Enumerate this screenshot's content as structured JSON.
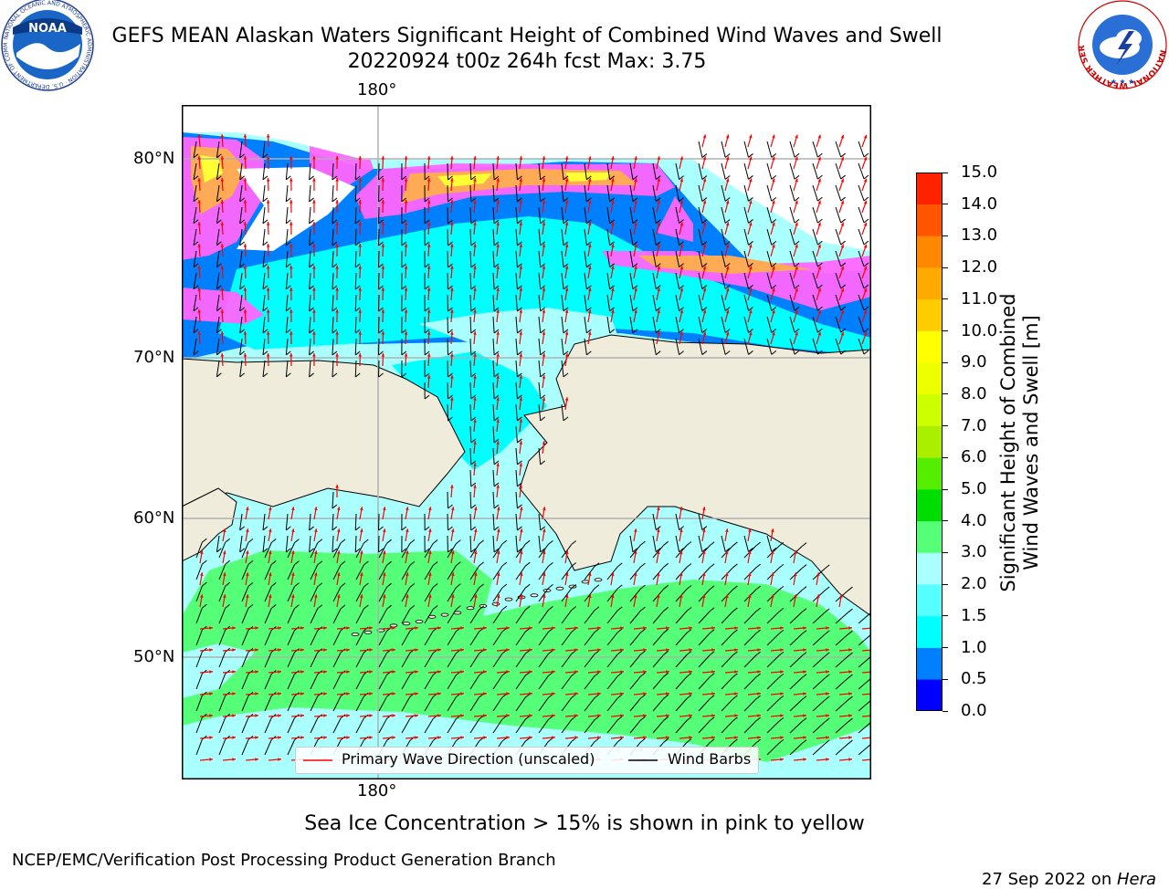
{
  "header": {
    "title_line1": "GEFS MEAN Alaskan Waters Significant Height of Combined Wind Waves and Swell",
    "title_line2": "20220924 t00z 264h fcst   Max: 3.75"
  },
  "logos": {
    "noaa_text": "NOAA",
    "noaa_ring_text": "NATIONAL OCEANIC AND ATMOSPHERIC ADMINISTRATION · U.S. DEPARTMENT OF COMMERCE",
    "nws_ring_text": "NATIONAL WEATHER SERVICE"
  },
  "map": {
    "lon_label_top": "180°",
    "lon_label_bottom": "180°",
    "lat_labels": [
      "80°N",
      "70°N",
      "60°N",
      "50°N"
    ],
    "colors": {
      "land": "#efecdc",
      "grid": "#b0b0b0",
      "coast": "#000000",
      "wave_arrow": "#ff0000",
      "wind_barb": "#000000",
      "ice_pink": "#ff66ff",
      "ice_orange": "#ffaa55",
      "ice_yellow": "#ffff33"
    }
  },
  "legend": {
    "items": [
      {
        "label": "Primary Wave Direction (unscaled)",
        "color": "#ff0000"
      },
      {
        "label": "Wind Barbs",
        "color": "#000000"
      }
    ]
  },
  "colorbar": {
    "label_line1": "Significant Height of Combined",
    "label_line2": "Wind Waves and Swell [m]",
    "ticks": [
      "15.0",
      "14.0",
      "13.0",
      "12.0",
      "11.0",
      "10.0",
      "9.0",
      "8.0",
      "7.0",
      "6.0",
      "5.0",
      "4.0",
      "3.0",
      "2.0",
      "1.5",
      "1.0",
      "0.5",
      "0.0"
    ],
    "colors": [
      "#0000ff",
      "#0080ff",
      "#00ffff",
      "#55ffff",
      "#aaffff",
      "#55ff77",
      "#00dd00",
      "#55ee00",
      "#aaee00",
      "#ccff00",
      "#eeff00",
      "#ffff00",
      "#ffcc00",
      "#ffaa00",
      "#ff8800",
      "#ff5500",
      "#ff2200"
    ]
  },
  "footer": {
    "ice_note": "Sea Ice Concentration > 15% is shown in pink to yellow",
    "producer": "NCEP/EMC/Verification Post Processing Product Generation Branch",
    "date": "27 Sep 2022 on ",
    "machine": "Hera"
  }
}
